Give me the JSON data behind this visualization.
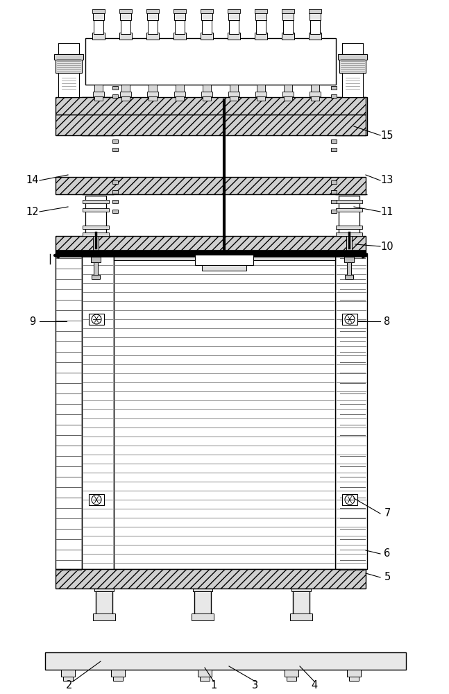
{
  "bg_color": "#ffffff",
  "lc": "#000000",
  "lw_main": 1.0,
  "lw_thick": 2.5,
  "hatch_fc": "#d8d8d8",
  "white": "#ffffff",
  "light": "#f0f0f0",
  "mid": "#e0e0e0"
}
